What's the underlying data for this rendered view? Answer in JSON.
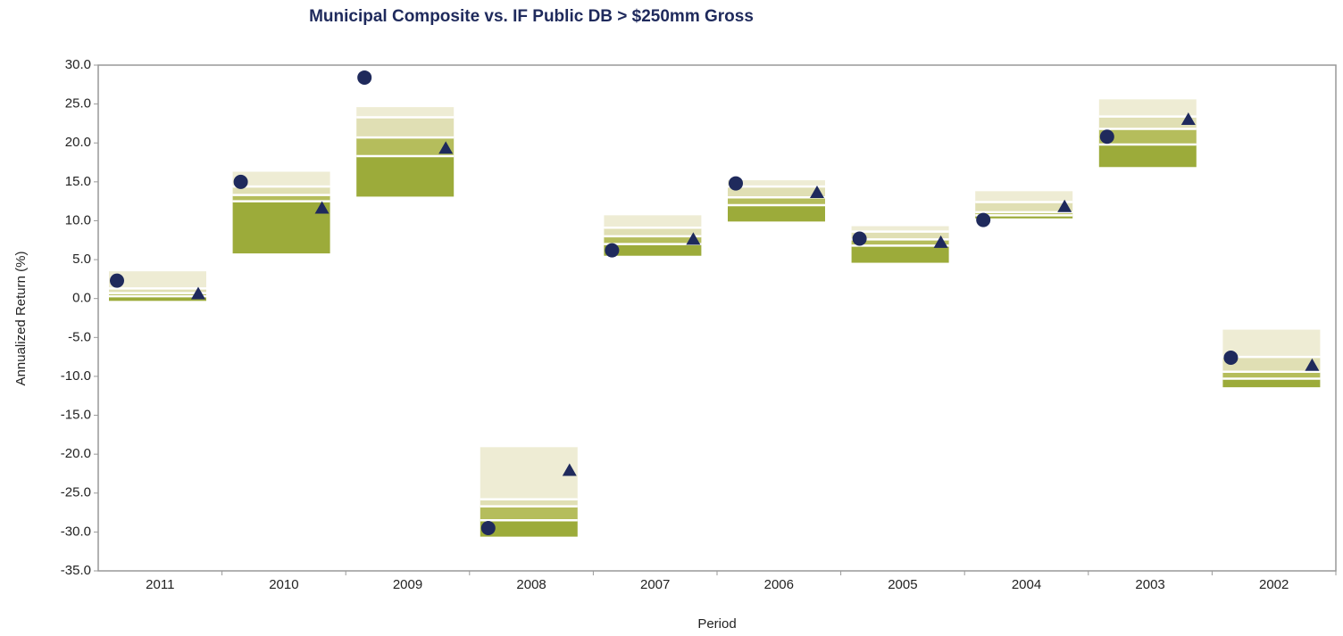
{
  "chart_data": {
    "type": "floating-percentile",
    "title": "Municipal Composite vs. IF Public DB > $250mm Gross",
    "xlabel": "Period",
    "ylabel": "Annualized Return (%)",
    "categories": [
      "2011",
      "2010",
      "2009",
      "2008",
      "2007",
      "2006",
      "2005",
      "2004",
      "2003",
      "2002"
    ],
    "percentiles": [
      [
        3.5,
        1.3,
        0.7,
        0.3,
        -0.3
      ],
      [
        16.3,
        14.4,
        13.3,
        12.5,
        5.8
      ],
      [
        24.6,
        23.3,
        20.7,
        18.3,
        13.1
      ],
      [
        -19.1,
        -25.8,
        -26.7,
        -28.5,
        -30.6
      ],
      [
        10.7,
        9.1,
        8.0,
        7.0,
        5.5
      ],
      [
        15.2,
        14.4,
        13.0,
        12.0,
        9.9
      ],
      [
        9.3,
        8.6,
        7.6,
        6.8,
        4.6
      ],
      [
        13.8,
        12.4,
        11.1,
        10.7,
        10.3
      ],
      [
        25.6,
        23.4,
        21.8,
        19.8,
        16.9
      ],
      [
        -4.0,
        -7.5,
        -9.4,
        -10.3,
        -11.4
      ]
    ],
    "band_colors": [
      "#eeecd4",
      "#e0dfb4",
      "#b5bd5c",
      "#9cab3a"
    ],
    "series": [
      {
        "marker": "circle",
        "color": "#1f2a5c",
        "values": [
          2.3,
          15.0,
          28.4,
          -29.5,
          6.2,
          14.8,
          7.7,
          10.1,
          20.8,
          -7.6
        ]
      },
      {
        "marker": "triangle",
        "color": "#1f2a5c",
        "values": [
          0.6,
          11.6,
          19.3,
          -22.1,
          7.6,
          13.6,
          7.2,
          11.8,
          23.0,
          -8.6
        ]
      }
    ],
    "ylim": [
      -35,
      30
    ],
    "yticks": [
      {
        "value": 30,
        "label": "30.0"
      },
      {
        "value": 25,
        "label": "25.0"
      },
      {
        "value": 20,
        "label": "20.0"
      },
      {
        "value": 15,
        "label": "15.0"
      },
      {
        "value": 10,
        "label": "10.0"
      },
      {
        "value": 5,
        "label": "5.0"
      },
      {
        "value": 0,
        "label": "0.0"
      },
      {
        "value": -5,
        "label": "-5.0"
      },
      {
        "value": -10,
        "label": "-10.0"
      },
      {
        "value": -15,
        "label": "-15.0"
      },
      {
        "value": -20,
        "label": "-20.0"
      },
      {
        "value": -25,
        "label": "-25.0"
      },
      {
        "value": -30,
        "label": "-30.0"
      },
      {
        "value": -35,
        "label": "-35.0"
      }
    ]
  }
}
